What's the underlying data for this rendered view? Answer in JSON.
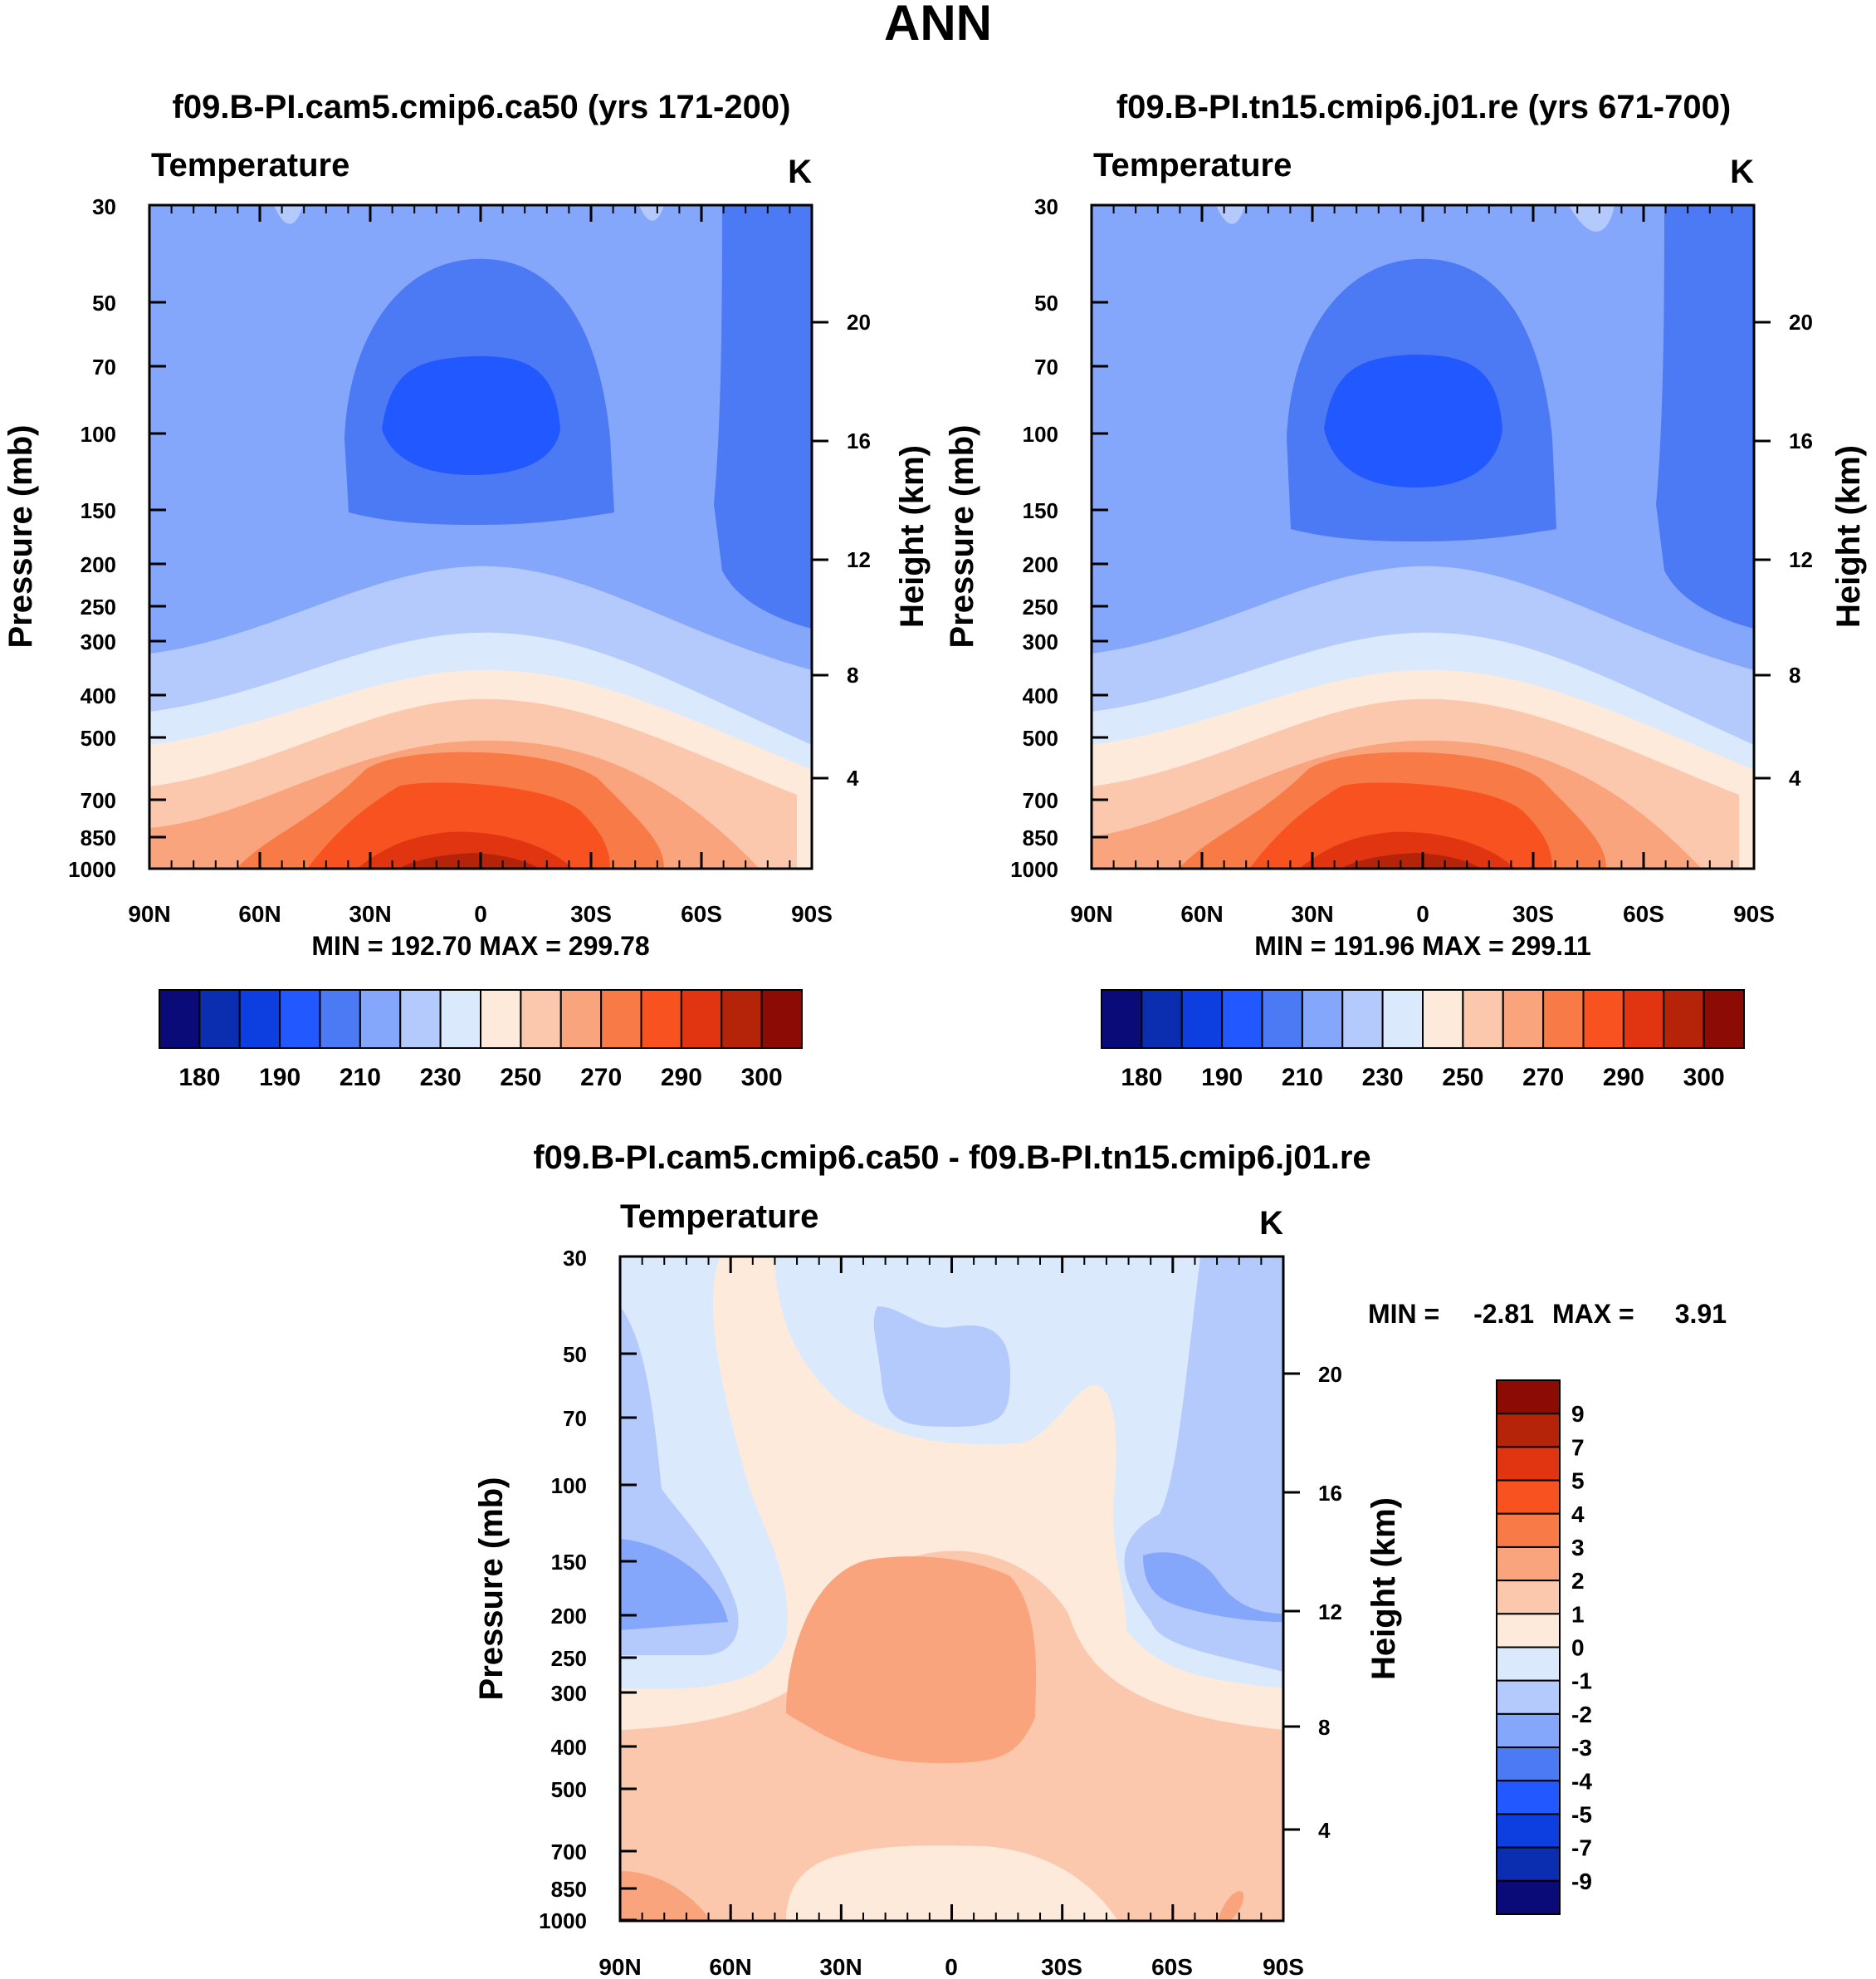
{
  "figure_title": "ANN",
  "colorbar_full_levels": [
    "180",
    "190",
    "210",
    "230",
    "250",
    "270",
    "290",
    "300"
  ],
  "colorbar_diff_levels": [
    "9",
    "7",
    "5",
    "4",
    "3",
    "2",
    "1",
    "0",
    "-1",
    "-2",
    "-3",
    "-4",
    "-5",
    "-7",
    "-9"
  ],
  "colors_full": [
    "#0a0a78",
    "#0b2eb0",
    "#0d3fe0",
    "#2258ff",
    "#4c7af5",
    "#84a6fb",
    "#b4cafd",
    "#dbe9fd",
    "#fdeadb",
    "#fbc8ad",
    "#f9a47c",
    "#f87a46",
    "#f75220",
    "#e03510",
    "#b52408",
    "#8c0c05"
  ],
  "colors_diff": [
    "#8c0c05",
    "#b52408",
    "#e03510",
    "#f75220",
    "#f87a46",
    "#f9a47c",
    "#fbc8ad",
    "#fdeadb",
    "#dbe9fd",
    "#b4cafd",
    "#84a6fb",
    "#4c7af5",
    "#2258ff",
    "#0d3fe0",
    "#0b2eb0",
    "#0a0a78"
  ],
  "chart_data": [
    {
      "type": "heatmap",
      "title": "f09.B-PI.cam5.cmip6.ca50 (yrs 171-200)",
      "left_label": "Temperature",
      "units": "K",
      "xlabel": "",
      "ylabel": "Pressure (mb)",
      "y2label": "Height (km)",
      "x_ticks": [
        "90N",
        "60N",
        "30N",
        "0",
        "30S",
        "60S",
        "90S"
      ],
      "y_ticks": [
        "30",
        "50",
        "70",
        "100",
        "150",
        "200",
        "250",
        "300",
        "400",
        "500",
        "700",
        "850",
        "1000"
      ],
      "y2_ticks": [
        "20",
        "16",
        "12",
        "8",
        "4"
      ],
      "ylim": [
        1000,
        30
      ],
      "stats": "MIN = 192.70  MAX = 299.78",
      "min": 192.7,
      "max": 299.78
    },
    {
      "type": "heatmap",
      "title": "f09.B-PI.tn15.cmip6.j01.re (yrs 671-700)",
      "left_label": "Temperature",
      "units": "K",
      "xlabel": "",
      "ylabel": "Pressure (mb)",
      "y2label": "Height (km)",
      "x_ticks": [
        "90N",
        "60N",
        "30N",
        "0",
        "30S",
        "60S",
        "90S"
      ],
      "y_ticks": [
        "30",
        "50",
        "70",
        "100",
        "150",
        "200",
        "250",
        "300",
        "400",
        "500",
        "700",
        "850",
        "1000"
      ],
      "y2_ticks": [
        "20",
        "16",
        "12",
        "8",
        "4"
      ],
      "ylim": [
        1000,
        30
      ],
      "stats": "MIN = 191.96  MAX = 299.11",
      "min": 191.96,
      "max": 299.11
    },
    {
      "type": "heatmap",
      "title": "f09.B-PI.cam5.cmip6.ca50 - f09.B-PI.tn15.cmip6.j01.re",
      "left_label": "Temperature",
      "units": "K",
      "xlabel": "",
      "ylabel": "Pressure (mb)",
      "y2label": "Height (km)",
      "x_ticks": [
        "90N",
        "60N",
        "30N",
        "0",
        "30S",
        "60S",
        "90S"
      ],
      "y_ticks": [
        "30",
        "50",
        "70",
        "100",
        "150",
        "200",
        "250",
        "300",
        "400",
        "500",
        "700",
        "850",
        "1000"
      ],
      "y2_ticks": [
        "20",
        "16",
        "12",
        "8",
        "4"
      ],
      "ylim": [
        1000,
        30
      ],
      "stats_min_label": "MIN =",
      "stats_min_value": "-2.81",
      "stats_max_label": "MAX =",
      "stats_max_value": "3.91",
      "min": -2.81,
      "max": 3.91
    }
  ]
}
